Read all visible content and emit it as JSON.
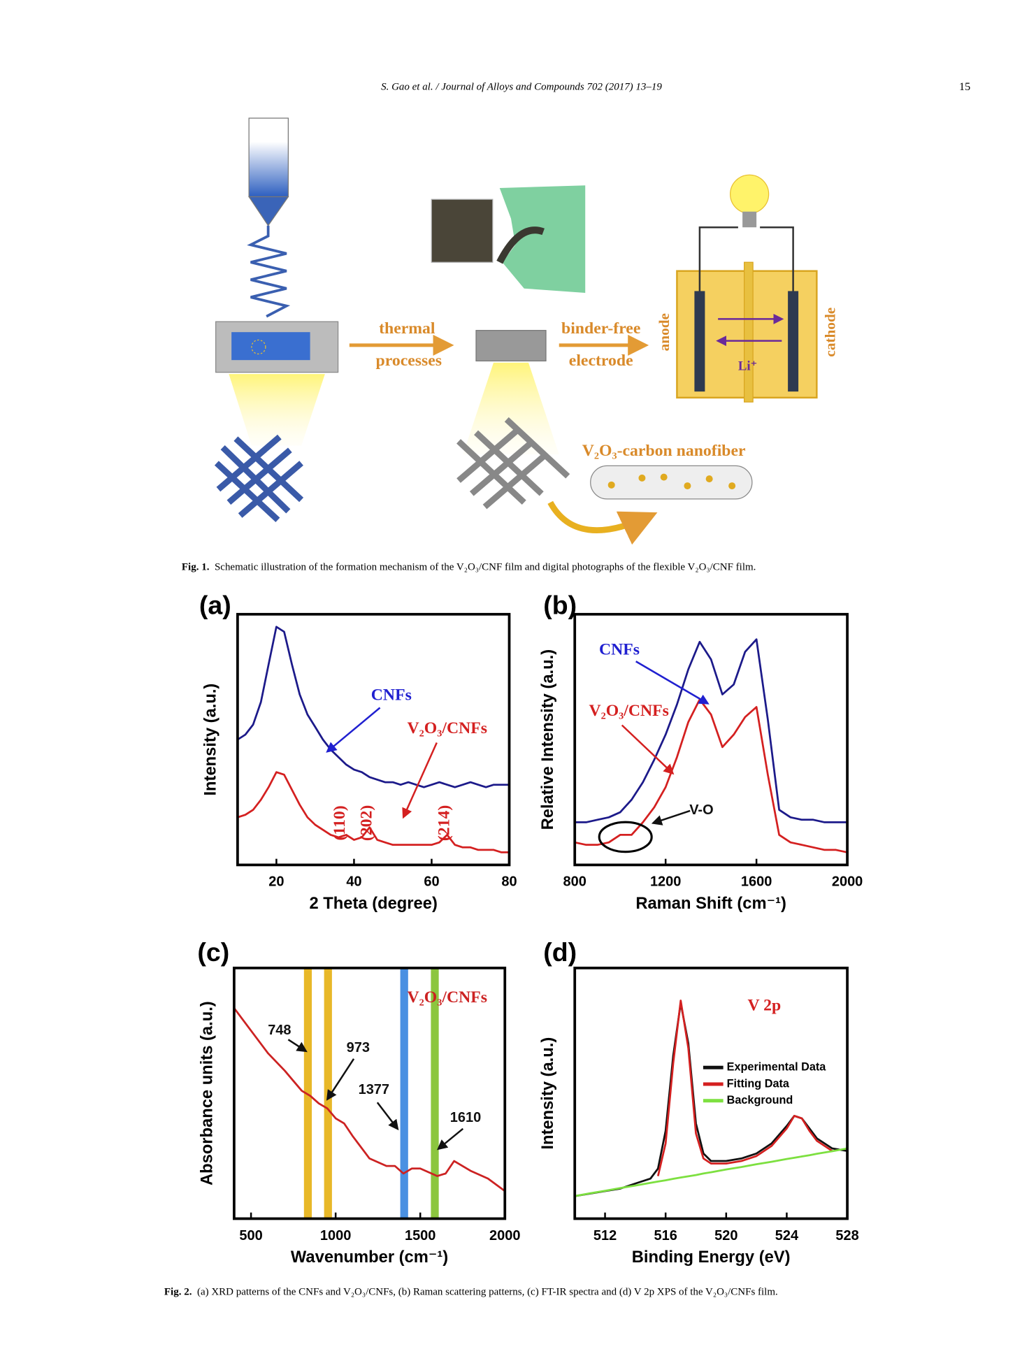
{
  "header": {
    "running_title": "S. Gao et al. / Journal of Alloys and Compounds 702 (2017) 13–19",
    "page_number": "15"
  },
  "figure1": {
    "labels": [
      "thermal",
      "processes",
      "binder-free",
      "electrode",
      "anode",
      "cathode",
      "Li⁺",
      "V₂O₃-carbon nanofiber"
    ],
    "caption_label": "Fig. 1.",
    "caption": "Schematic illustration of the formation mechanism of the V₂O₃/CNF film and digital photographs of the flexible V₂O₃/CNF film."
  },
  "chart_data": [
    {
      "type": "line",
      "panel_label": "(a)",
      "xlabel": "2 Theta (degree)",
      "ylabel": "Intensity (a.u.)",
      "x": [
        10,
        12,
        14,
        16,
        18,
        20,
        22,
        24,
        26,
        28,
        30,
        32,
        34,
        36,
        38,
        40,
        42,
        44,
        46,
        48,
        50,
        52,
        54,
        56,
        58,
        60,
        62,
        64,
        66,
        68,
        70,
        72,
        74,
        76,
        78,
        80
      ],
      "xlim": [
        10,
        80
      ],
      "xticks": [
        20,
        40,
        60,
        80
      ],
      "ylim": [
        0,
        100
      ],
      "series": [
        {
          "name": "CNFs",
          "color": "#1c1a8a",
          "values": [
            50,
            52,
            56,
            65,
            80,
            95,
            93,
            80,
            68,
            60,
            55,
            50,
            46,
            43,
            40,
            38,
            37,
            35,
            34,
            33,
            33,
            32,
            33,
            32,
            31,
            32,
            33,
            32,
            31,
            32,
            33,
            32,
            31,
            32,
            32,
            32
          ]
        },
        {
          "name": "V₂O₃/CNFs",
          "color": "#d42020",
          "values": [
            19,
            20,
            22,
            26,
            31,
            37,
            36,
            30,
            24,
            19,
            16,
            14,
            12,
            11,
            12,
            10,
            11,
            15,
            10,
            9,
            8,
            8,
            8,
            8,
            8,
            8,
            9,
            12,
            8,
            7,
            7,
            6,
            6,
            6,
            5,
            5
          ]
        }
      ],
      "annotations": [
        "CNFs",
        "V₂O₃/CNFs",
        "(110)",
        "(202)",
        "(214)"
      ]
    },
    {
      "type": "line",
      "panel_label": "(b)",
      "xlabel": "Raman Shift (cm⁻¹)",
      "ylabel": "Relative Intensity (a.u.)",
      "x": [
        800,
        850,
        900,
        950,
        1000,
        1050,
        1100,
        1150,
        1200,
        1250,
        1300,
        1350,
        1400,
        1450,
        1500,
        1550,
        1600,
        1650,
        1700,
        1750,
        1800,
        1850,
        1900,
        1950,
        2000
      ],
      "xlim": [
        800,
        2000
      ],
      "xticks": [
        800,
        1200,
        1600,
        2000
      ],
      "ylim": [
        0,
        100
      ],
      "series": [
        {
          "name": "CNFs",
          "color": "#1c1a8a",
          "values": [
            17,
            17,
            18,
            19,
            21,
            26,
            33,
            42,
            52,
            64,
            78,
            89,
            82,
            68,
            72,
            85,
            90,
            58,
            22,
            19,
            18,
            18,
            17,
            17,
            17
          ]
        },
        {
          "name": "V₂O₃/CNFs",
          "color": "#d42020",
          "values": [
            9,
            8,
            8,
            9,
            12,
            12,
            17,
            23,
            31,
            43,
            57,
            66,
            60,
            47,
            52,
            59,
            63,
            36,
            12,
            9,
            8,
            7,
            6,
            6,
            5
          ]
        }
      ],
      "annotations": [
        "CNFs",
        "V₂O₃/CNFs",
        "V-O"
      ]
    },
    {
      "type": "line",
      "panel_label": "(c)",
      "xlabel": "Wavenumber (cm⁻¹)",
      "ylabel": "Absorbance units (a.u.)",
      "x": [
        400,
        500,
        600,
        700,
        750,
        800,
        850,
        900,
        950,
        1000,
        1050,
        1100,
        1200,
        1300,
        1350,
        1400,
        1450,
        1500,
        1600,
        1650,
        1700,
        1800,
        1900,
        2000
      ],
      "xlim": [
        400,
        2000
      ],
      "xticks": [
        500,
        1000,
        1500,
        2000
      ],
      "ylim": [
        0,
        100
      ],
      "bands": [
        {
          "x": 836,
          "color": "#e8b828"
        },
        {
          "x": 955,
          "color": "#e8b828"
        },
        {
          "x": 1405,
          "color": "#4a90e2"
        },
        {
          "x": 1586,
          "color": "#8cc63f"
        }
      ],
      "series": [
        {
          "name": "V₂O₃/CNFs",
          "color": "#cc2222",
          "values": [
            84,
            75,
            66,
            59,
            55,
            51,
            49,
            46,
            44,
            40,
            38,
            33,
            24,
            21,
            21,
            18,
            20,
            20,
            17,
            18,
            23,
            19,
            16,
            11
          ]
        }
      ],
      "annotations": [
        "748",
        "973",
        "1377",
        "1610"
      ]
    },
    {
      "type": "line",
      "panel_label": "(d)",
      "xlabel": "Binding Energy (eV)",
      "ylabel": "Intensity (a.u.)",
      "x": [
        510,
        511,
        512,
        513,
        514,
        515,
        515.5,
        516,
        516.5,
        517,
        517.5,
        518,
        518.5,
        519,
        520,
        521,
        522,
        523,
        524,
        524.5,
        525,
        525.5,
        526,
        527,
        528
      ],
      "xlim": [
        510,
        528
      ],
      "xticks": [
        512,
        516,
        520,
        524,
        528
      ],
      "ylim": [
        0,
        100
      ],
      "legend": true,
      "series": [
        {
          "name": "Experimental Data",
          "color": "#111111",
          "values": [
            9,
            10,
            11,
            12,
            14,
            16,
            20,
            35,
            65,
            86,
            70,
            38,
            26,
            23,
            23,
            24,
            26,
            30,
            37,
            41,
            40,
            36,
            32,
            28,
            27
          ]
        },
        {
          "name": "Fitting Data",
          "color": "#d42020",
          "values": [
            null,
            null,
            null,
            null,
            null,
            null,
            17,
            30,
            62,
            87,
            68,
            34,
            24,
            22,
            22,
            23,
            25,
            29,
            36,
            41,
            40,
            35,
            31,
            27,
            null
          ]
        },
        {
          "name": "Background",
          "color": "#7de040",
          "values": [
            9,
            10.1,
            11.1,
            12.2,
            13.2,
            14.3,
            14.8,
            15.3,
            15.9,
            16.4,
            16.9,
            17.4,
            18,
            18.5,
            19.6,
            20.6,
            21.7,
            22.7,
            23.8,
            24.3,
            24.8,
            25.3,
            25.9,
            26.9,
            28
          ]
        }
      ],
      "annotations": [
        "V 2p"
      ]
    }
  ],
  "figure2": {
    "caption_label": "Fig. 2.",
    "caption": "(a) XRD patterns of the CNFs and V₂O₃/CNFs, (b) Raman scattering patterns, (c) FT-IR spectra and (d) V 2p XPS of the V₂O₃/CNFs film."
  }
}
